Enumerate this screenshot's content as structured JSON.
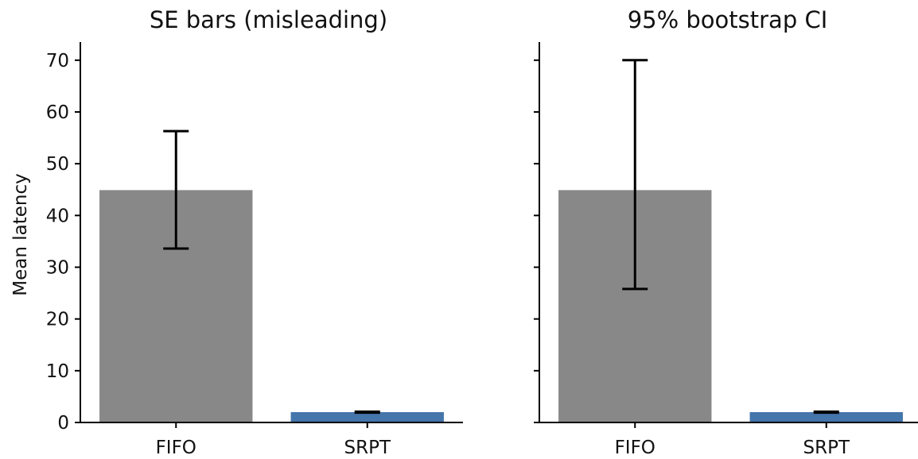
{
  "chart_data": [
    {
      "type": "bar",
      "title": "SE bars (misleading)",
      "ylabel": "Mean latency",
      "xlabel": "",
      "categories": [
        "FIFO",
        "SRPT"
      ],
      "values": [
        44.9,
        2.0
      ],
      "error_low": [
        33.6,
        1.9
      ],
      "error_high": [
        56.3,
        2.1
      ],
      "colors": [
        "#888888",
        "#4475ab"
      ],
      "ylim": [
        0,
        73.5
      ],
      "yticks": [
        0,
        10,
        20,
        30,
        40,
        50,
        60,
        70
      ],
      "grid": false,
      "legend": "none"
    },
    {
      "type": "bar",
      "title": "95% bootstrap CI",
      "ylabel": "",
      "xlabel": "",
      "categories": [
        "FIFO",
        "SRPT"
      ],
      "values": [
        44.9,
        2.0
      ],
      "error_low": [
        25.8,
        1.9
      ],
      "error_high": [
        70.0,
        2.1
      ],
      "colors": [
        "#888888",
        "#4475ab"
      ],
      "ylim": [
        0,
        73.5
      ],
      "yticks": [
        0,
        10,
        20,
        30,
        40,
        50,
        60,
        70
      ],
      "grid": false,
      "legend": "none"
    }
  ]
}
